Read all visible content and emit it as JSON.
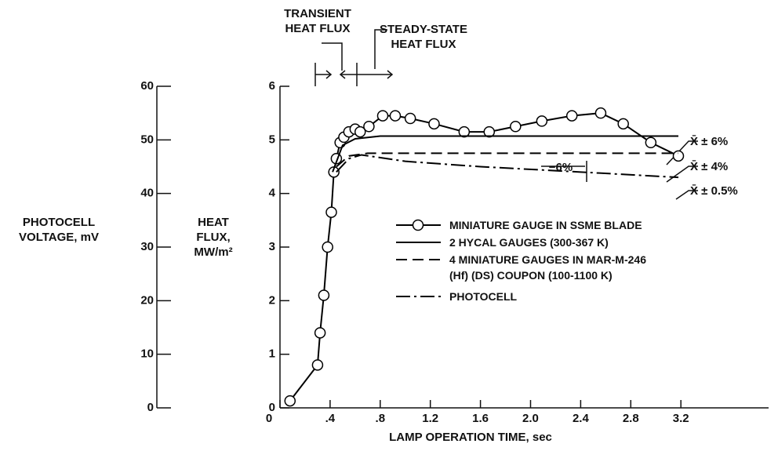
{
  "chart_data": {
    "type": "line",
    "xlabel": "LAMP OPERATION TIME, sec",
    "ylabel": "HEAT FLUX, MW/m²",
    "y2label": "PHOTOCELL VOLTAGE, mV",
    "xlim": [
      0,
      3.9
    ],
    "xticks": [
      0,
      {
        "value": 0.4,
        "label": ".4"
      },
      {
        "value": 0.8,
        "label": ".8"
      },
      1.2,
      1.6,
      {
        "value": 2.0,
        "label": "2.0"
      },
      2.4,
      2.8,
      3.2
    ],
    "ylim": [
      0,
      6
    ],
    "yticks": [
      0,
      1,
      2,
      3,
      4,
      5,
      6
    ],
    "y2lim": [
      0,
      60
    ],
    "y2ticks": [
      0,
      10,
      20,
      30,
      40,
      50,
      60
    ],
    "series": [
      {
        "name": "MINIATURE GAUGE IN SSME BLADE",
        "color": "#000000",
        "style": "circles",
        "x": [
          0.08,
          0.3,
          0.32,
          0.35,
          0.38,
          0.41,
          0.43,
          0.45,
          0.48,
          0.51,
          0.55,
          0.6,
          0.64,
          0.71,
          0.82,
          0.92,
          1.04,
          1.23,
          1.47,
          1.67,
          1.88,
          2.09,
          2.33,
          2.56,
          2.74,
          2.96,
          3.18
        ],
        "values": [
          0.13,
          0.8,
          1.4,
          2.1,
          3.0,
          3.65,
          4.4,
          4.65,
          4.95,
          5.05,
          5.15,
          5.2,
          5.15,
          5.25,
          5.45,
          5.45,
          5.4,
          5.3,
          5.15,
          5.15,
          5.25,
          5.35,
          5.45,
          5.5,
          5.3,
          4.95,
          4.7
        ]
      },
      {
        "name": "2 HYCAL GAUGES (300-367 K)",
        "color": "#000000",
        "style": "solid",
        "x": [
          0.42,
          0.5,
          0.6,
          0.8,
          3.18
        ],
        "values": [
          4.4,
          4.9,
          5.02,
          5.07,
          5.07
        ]
      },
      {
        "name": "4 MINIATURE GAUGES IN MAR-M-246 (Hf) (DS) COUPON (100-1100 K)",
        "color": "#000000",
        "style": "dashed",
        "x": [
          0.45,
          0.55,
          0.7,
          3.18
        ],
        "values": [
          4.5,
          4.7,
          4.75,
          4.75
        ]
      },
      {
        "name": "PHOTOCELL",
        "color": "#000000",
        "style": "dashdot",
        "x": [
          0.45,
          0.55,
          0.65,
          1.0,
          1.6,
          2.4,
          3.18
        ],
        "values": [
          4.4,
          4.65,
          4.72,
          4.6,
          4.5,
          4.4,
          4.3
        ]
      }
    ],
    "annotations": [
      "TRANSIENT HEAT FLUX",
      "STEADY-STATE HEAT FLUX",
      "−6%",
      "X̄ ± 6%",
      "X̄ ± 4%",
      "X̄ ± 0.5%"
    ]
  }
}
